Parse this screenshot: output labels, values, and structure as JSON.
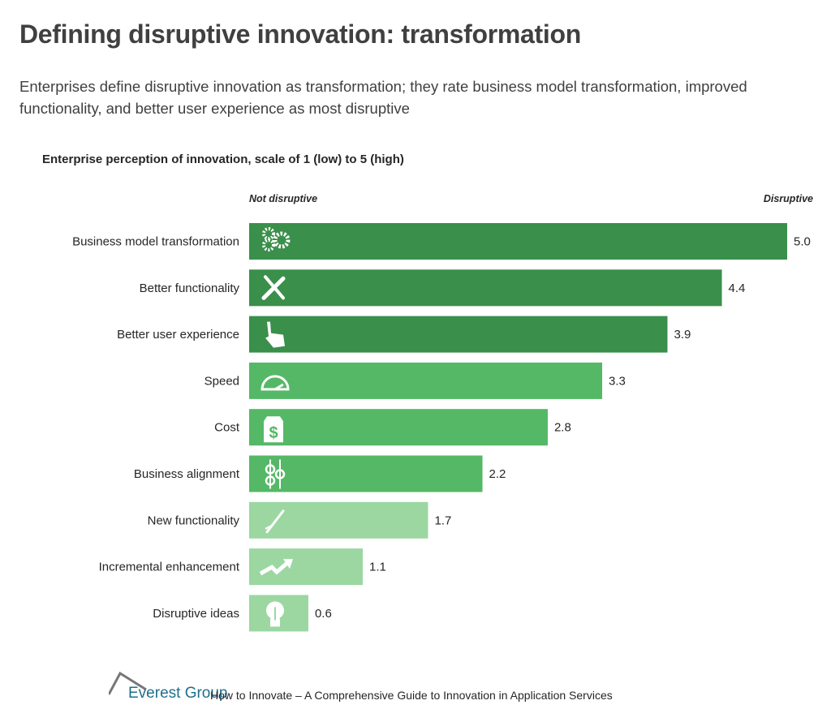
{
  "title": "Defining disruptive innovation: transformation",
  "subtitle": "Enterprises define disruptive innovation as transformation; they rate business model transformation, improved functionality, and better user experience as most disruptive",
  "chart_data": {
    "type": "bar",
    "orientation": "horizontal",
    "title": "Enterprise perception of innovation, scale of 1 (low) to 5 (high)",
    "axis_left_label": "Not disruptive",
    "axis_right_label": "Disruptive",
    "categories": [
      "Business model transformation",
      "Better functionality",
      "Better user experience",
      "Speed",
      "Cost",
      "Business alignment",
      "New functionality",
      "Incremental enhancement",
      "Disruptive ideas"
    ],
    "values": [
      5.0,
      4.4,
      3.9,
      3.3,
      2.8,
      2.2,
      1.7,
      1.1,
      0.6
    ],
    "value_labels": [
      "5.0",
      "4.4",
      "3.9",
      "3.3",
      "2.8",
      "2.2",
      "1.7",
      "1.1",
      "0.6"
    ],
    "icons": [
      "gears-icon",
      "tools-icon",
      "pointing-hand-icon",
      "speedometer-icon",
      "price-tag-icon",
      "alignment-icon",
      "screwdriver-icon",
      "trend-arrow-icon",
      "lightbulb-icon"
    ],
    "colors": [
      "#3a8f4b",
      "#3a8f4b",
      "#3a8f4b",
      "#55b866",
      "#55b866",
      "#55b866",
      "#9cd7a2",
      "#9cd7a2",
      "#9cd7a2"
    ],
    "xlim": [
      0,
      5
    ]
  },
  "footer": {
    "logo": "Everest Group",
    "text": "How to Innovate – A Comprehensive Guide to Innovation in Application Services"
  }
}
